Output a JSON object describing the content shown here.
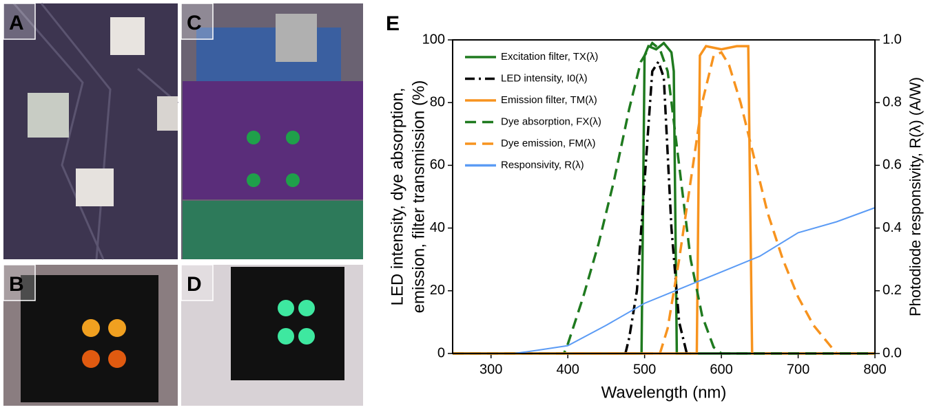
{
  "panels": [
    {
      "label": "A"
    },
    {
      "label": "B"
    },
    {
      "label": "C"
    },
    {
      "label": "D"
    }
  ],
  "chart_data": {
    "type": "line",
    "panel_label": "E",
    "xlabel": "Wavelength (nm)",
    "ylabel": [
      "LED intensity, dye absorption,",
      "emission, filter transmission (%)"
    ],
    "y2label": "Photodiode responsivity, R(λ) (A/W)",
    "xlim": [
      250,
      800
    ],
    "xticks": [
      300,
      400,
      500,
      600,
      700,
      800
    ],
    "ylim": [
      0,
      100
    ],
    "yticks": [
      0,
      20,
      40,
      60,
      80,
      100
    ],
    "y2lim": [
      0,
      1
    ],
    "y2ticks": [
      {
        "value": 0,
        "label": "0.0"
      },
      0.2,
      0.4,
      0.6,
      0.8,
      {
        "value": 1,
        "label": "1.0"
      }
    ],
    "legend": "upper left",
    "series": [
      {
        "name": "Excitation filter, TX(λ)",
        "color": "#1f7a1f",
        "dash": "solid",
        "x": [
          250,
          496,
          500,
          505,
          515,
          525,
          535,
          538,
          542,
          800
        ],
        "values": [
          0,
          0,
          95,
          98,
          97,
          99,
          96,
          90,
          0,
          0
        ]
      },
      {
        "name": "LED intensity, I0(λ)",
        "color": "#000000",
        "dash": "dashdot",
        "x": [
          475,
          480,
          490,
          500,
          510,
          518,
          525,
          535,
          545,
          555,
          560
        ],
        "values": [
          0,
          5,
          20,
          55,
          90,
          93,
          88,
          40,
          10,
          0,
          0
        ]
      },
      {
        "name": "Emission filter, TM(λ)",
        "color": "#f7931e",
        "dash": "solid",
        "x": [
          250,
          568,
          572,
          580,
          600,
          620,
          635,
          640,
          800
        ],
        "values": [
          0,
          0,
          95,
          98,
          97,
          98,
          98,
          0,
          0
        ]
      },
      {
        "name": "Dye absorption, FX(λ)",
        "color": "#1f7a1f",
        "dash": "dashed",
        "x": [
          250,
          395,
          400,
          420,
          440,
          460,
          480,
          495,
          510,
          520,
          530,
          545,
          560,
          575,
          590,
          600,
          800
        ],
        "values": [
          0,
          0,
          3,
          18,
          35,
          55,
          78,
          93,
          99,
          97,
          90,
          60,
          30,
          12,
          2,
          0,
          0
        ]
      },
      {
        "name": "Dye emission, FM(λ)",
        "color": "#f7931e",
        "dash": "dashed",
        "x": [
          250,
          520,
          530,
          545,
          560,
          575,
          590,
          600,
          610,
          625,
          640,
          660,
          680,
          700,
          720,
          740,
          750
        ],
        "values": [
          0,
          0,
          8,
          30,
          55,
          80,
          95,
          96,
          92,
          80,
          65,
          45,
          30,
          18,
          9,
          3,
          0
        ]
      },
      {
        "name": "Responsivity, R(λ)",
        "color": "#5b9bf5",
        "dash": "solid",
        "axis": "y2",
        "x": [
          260,
          330,
          360,
          400,
          450,
          500,
          550,
          600,
          650,
          700,
          750,
          800
        ],
        "values": [
          0,
          0,
          0.01,
          0.025,
          0.09,
          0.16,
          0.21,
          0.26,
          0.31,
          0.385,
          0.42,
          0.465
        ]
      }
    ]
  }
}
